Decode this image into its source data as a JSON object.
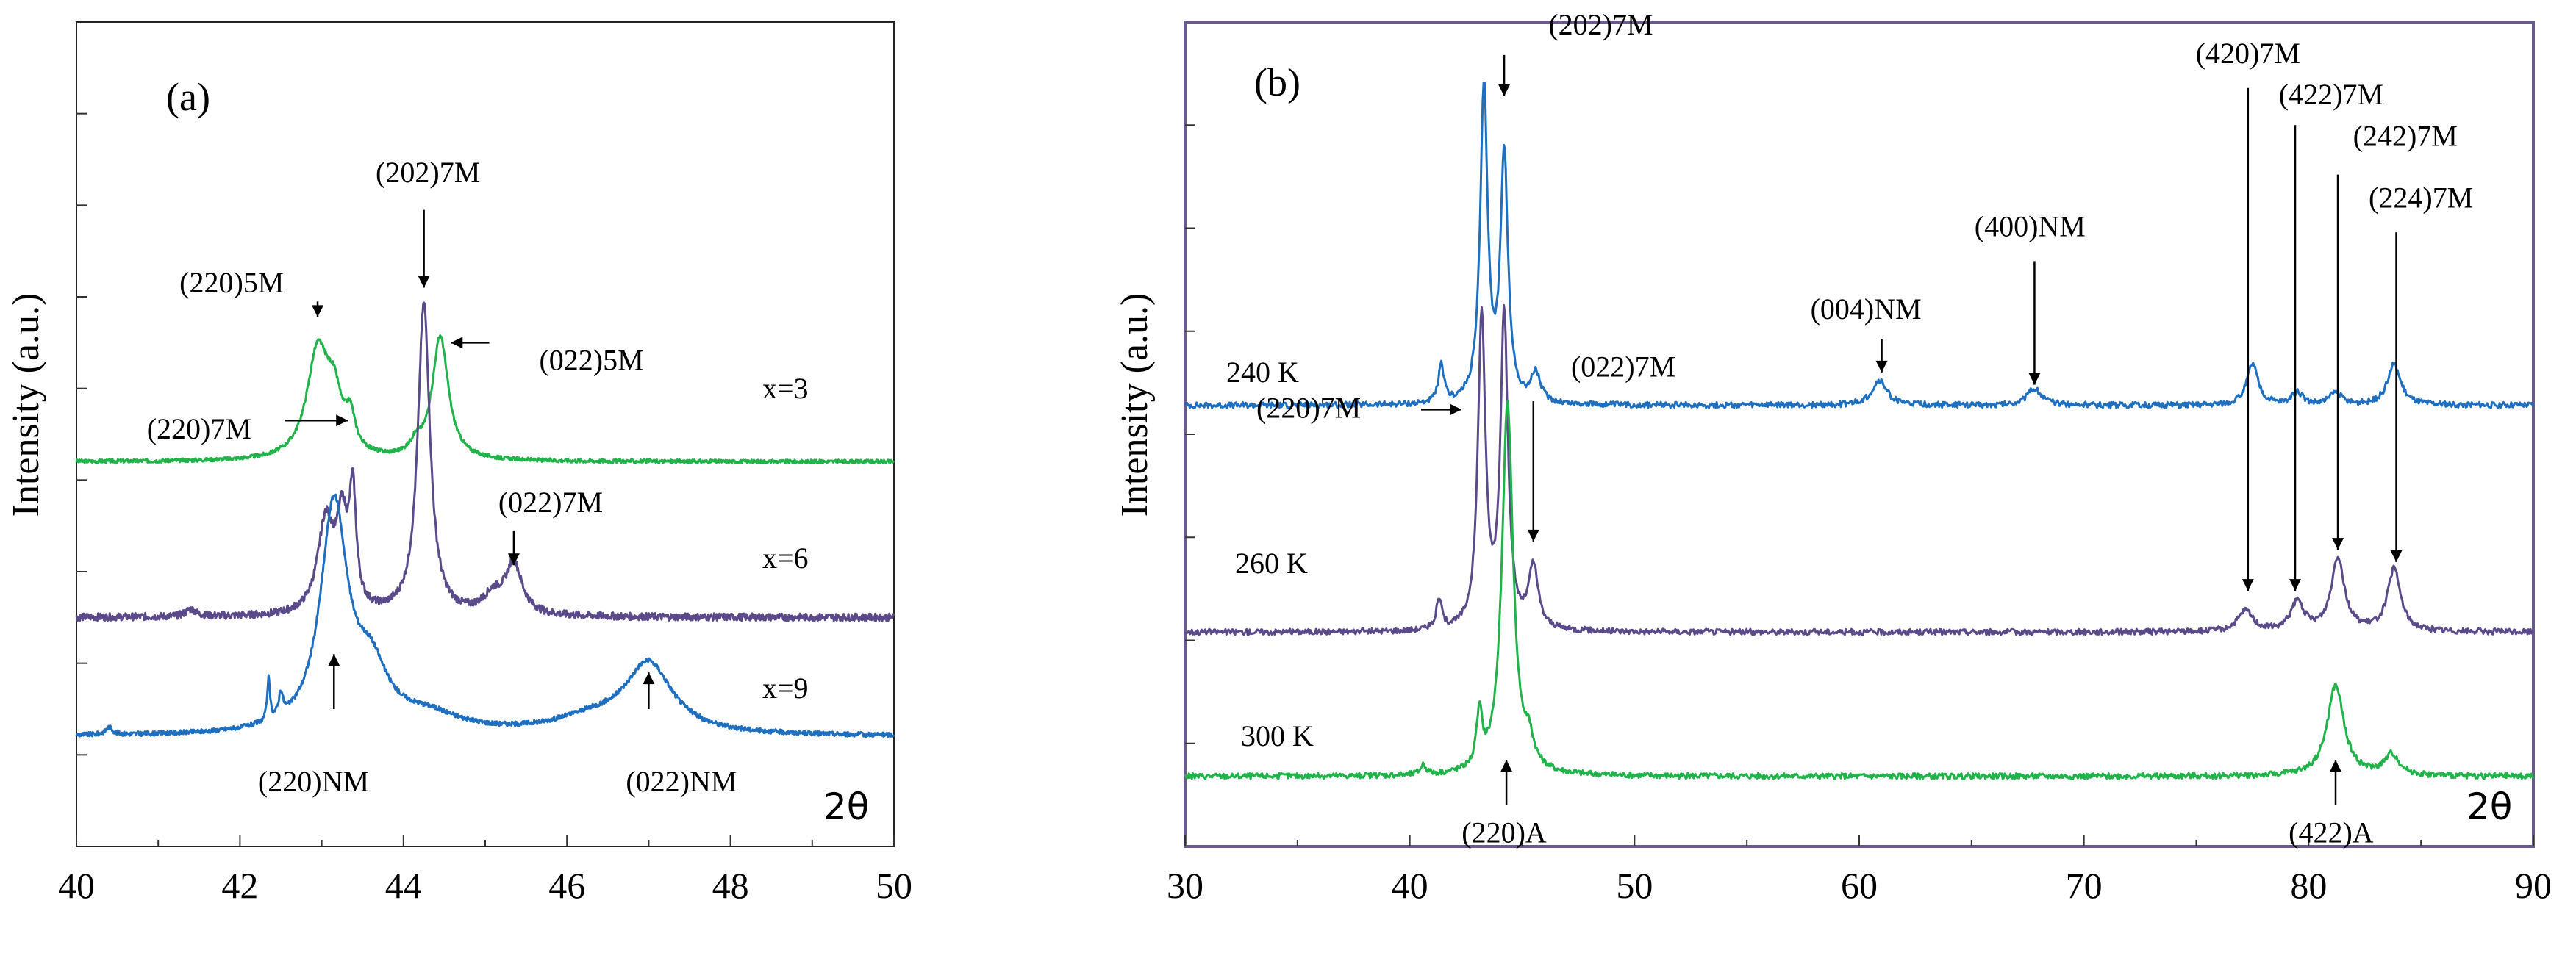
{
  "chart_data": [
    {
      "type": "line",
      "panel_label": "(a)",
      "title": "",
      "xlabel": "2θ",
      "ylabel": "Intensity (a.u.)",
      "xlim": [
        40,
        50
      ],
      "ylim": [
        0,
        9
      ],
      "xticks": [
        40,
        42,
        44,
        46,
        48,
        50
      ],
      "xtick_labels": [
        "40",
        "42",
        "44",
        "46",
        "48",
        "50"
      ],
      "grid": false,
      "series": [
        {
          "name": "x=3",
          "label": "x=3",
          "color": "#1fb34a",
          "offset": 4.2,
          "baseline": 0,
          "noise": 0.02,
          "seed": 3,
          "peaks": [
            {
              "pos": 42.95,
              "h": 1.15,
              "w": 0.16
            },
            {
              "pos": 43.15,
              "h": 0.55,
              "w": 0.12
            },
            {
              "pos": 43.35,
              "h": 0.35,
              "w": 0.07
            },
            {
              "pos": 44.45,
              "h": 1.35,
              "w": 0.12
            },
            {
              "pos": 44.15,
              "h": 0.12,
              "w": 0.08
            }
          ]
        },
        {
          "name": "x=6",
          "label": "x=6",
          "color": "#5b4a8a",
          "offset": 2.5,
          "baseline": 0,
          "noise": 0.04,
          "seed": 6,
          "peaks": [
            {
              "pos": 41.4,
              "h": 0.08,
              "w": 0.08
            },
            {
              "pos": 43.05,
              "h": 1.0,
              "w": 0.12
            },
            {
              "pos": 43.25,
              "h": 0.9,
              "w": 0.08
            },
            {
              "pos": 43.38,
              "h": 1.2,
              "w": 0.05
            },
            {
              "pos": 44.25,
              "h": 3.4,
              "w": 0.09
            },
            {
              "pos": 45.35,
              "h": 0.55,
              "w": 0.12
            },
            {
              "pos": 45.1,
              "h": 0.2,
              "w": 0.15
            }
          ]
        },
        {
          "name": "x=9",
          "label": "x=9",
          "color": "#1e6fbf",
          "offset": 1.2,
          "baseline": 0,
          "noise": 0.025,
          "seed": 9,
          "peaks": [
            {
              "pos": 40.4,
              "h": 0.08,
              "w": 0.05
            },
            {
              "pos": 42.35,
              "h": 0.45,
              "w": 0.02
            },
            {
              "pos": 42.5,
              "h": 0.25,
              "w": 0.03
            },
            {
              "pos": 43.15,
              "h": 2.45,
              "w": 0.2
            },
            {
              "pos": 43.6,
              "h": 0.6,
              "w": 0.25
            },
            {
              "pos": 44.3,
              "h": 0.18,
              "w": 0.5
            },
            {
              "pos": 47.0,
              "h": 0.75,
              "w": 0.35
            },
            {
              "pos": 46.3,
              "h": 0.15,
              "w": 0.6
            }
          ]
        }
      ],
      "annotations": [
        {
          "text": "(220)5M",
          "tx": 41.9,
          "ty": 6.05,
          "arrow": [
            [
              42.95,
              5.95
            ],
            [
              42.95,
              5.78
            ]
          ]
        },
        {
          "text": "(202)7M",
          "tx": 44.3,
          "ty": 7.25,
          "arrow": [
            [
              44.25,
              6.95
            ],
            [
              44.25,
              6.1
            ]
          ]
        },
        {
          "text": "(022)5M",
          "tx": 46.3,
          "ty": 5.2,
          "arrow": [
            [
              45.05,
              5.5
            ],
            [
              44.58,
              5.5
            ]
          ]
        },
        {
          "text": "(220)7M",
          "tx": 41.5,
          "ty": 4.45,
          "arrow": [
            [
              42.55,
              4.65
            ],
            [
              43.32,
              4.65
            ]
          ]
        },
        {
          "text": "(022)7M",
          "tx": 45.8,
          "ty": 3.65,
          "arrow": [
            [
              45.35,
              3.45
            ],
            [
              45.35,
              3.07
            ]
          ]
        },
        {
          "text": "(220)NM",
          "tx": 42.9,
          "ty": 0.6,
          "arrow": [
            [
              43.15,
              1.5
            ],
            [
              43.15,
              2.1
            ]
          ]
        },
        {
          "text": "(022)NM",
          "tx": 47.4,
          "ty": 0.6,
          "arrow": [
            [
              47.0,
              1.5
            ],
            [
              47.0,
              1.9
            ]
          ]
        }
      ]
    },
    {
      "type": "line",
      "panel_label": "(b)",
      "title": "",
      "xlabel": "2θ",
      "ylabel": "Intensity (a.u.)",
      "xlim": [
        30,
        90
      ],
      "ylim": [
        0,
        10
      ],
      "xticks": [
        30,
        40,
        50,
        60,
        70,
        80,
        90
      ],
      "xtick_labels": [
        "30",
        "40",
        "50",
        "60",
        "70",
        "80",
        "90"
      ],
      "grid": false,
      "series": [
        {
          "name": "240 K",
          "label": "240 K",
          "color": "#1e6fbf",
          "offset": 5.35,
          "baseline": 0,
          "noise": 0.035,
          "seed": 24,
          "peaks": [
            {
              "pos": 41.4,
              "h": 0.45,
              "w": 0.15
            },
            {
              "pos": 43.3,
              "h": 3.8,
              "w": 0.2
            },
            {
              "pos": 44.2,
              "h": 3.0,
              "w": 0.2
            },
            {
              "pos": 45.6,
              "h": 0.35,
              "w": 0.25
            },
            {
              "pos": 60.9,
              "h": 0.3,
              "w": 0.4
            },
            {
              "pos": 67.8,
              "h": 0.2,
              "w": 0.4
            },
            {
              "pos": 77.5,
              "h": 0.5,
              "w": 0.3
            },
            {
              "pos": 79.5,
              "h": 0.15,
              "w": 0.3
            },
            {
              "pos": 81.2,
              "h": 0.15,
              "w": 0.3
            },
            {
              "pos": 83.8,
              "h": 0.5,
              "w": 0.35
            }
          ]
        },
        {
          "name": "260 K",
          "label": "260 K",
          "color": "#5b4a8a",
          "offset": 2.6,
          "baseline": 0,
          "noise": 0.035,
          "seed": 26,
          "peaks": [
            {
              "pos": 41.3,
              "h": 0.35,
              "w": 0.15
            },
            {
              "pos": 43.2,
              "h": 3.8,
              "w": 0.2
            },
            {
              "pos": 44.2,
              "h": 3.8,
              "w": 0.2
            },
            {
              "pos": 45.5,
              "h": 0.75,
              "w": 0.25
            },
            {
              "pos": 77.2,
              "h": 0.25,
              "w": 0.4
            },
            {
              "pos": 79.5,
              "h": 0.35,
              "w": 0.35
            },
            {
              "pos": 81.3,
              "h": 0.9,
              "w": 0.35
            },
            {
              "pos": 83.8,
              "h": 0.75,
              "w": 0.35
            }
          ]
        },
        {
          "name": "300 K",
          "label": "300 K",
          "color": "#1fb34a",
          "offset": 0.85,
          "baseline": 0,
          "noise": 0.035,
          "seed": 30,
          "peaks": [
            {
              "pos": 40.6,
              "h": 0.12,
              "w": 0.15
            },
            {
              "pos": 43.1,
              "h": 0.65,
              "w": 0.15
            },
            {
              "pos": 44.35,
              "h": 4.5,
              "w": 0.3
            },
            {
              "pos": 45.3,
              "h": 0.3,
              "w": 0.25
            },
            {
              "pos": 81.2,
              "h": 1.1,
              "w": 0.45
            },
            {
              "pos": 83.7,
              "h": 0.25,
              "w": 0.4
            }
          ]
        }
      ],
      "annotations": [
        {
          "text": "(202)7M",
          "tx": 48.5,
          "ty": 9.85,
          "arrow": [
            [
              44.2,
              9.6
            ],
            [
              44.2,
              9.1
            ]
          ]
        },
        {
          "text": "(004)NM",
          "tx": 60.3,
          "ty": 6.4,
          "arrow": [
            [
              61.0,
              6.15
            ],
            [
              61.0,
              5.75
            ]
          ]
        },
        {
          "text": "(400)NM",
          "tx": 67.6,
          "ty": 7.4,
          "arrow": [
            [
              67.8,
              7.1
            ],
            [
              67.8,
              5.6
            ]
          ]
        },
        {
          "text": "(420)7M",
          "tx": 77.3,
          "ty": 9.5,
          "arrow": [
            [
              77.3,
              9.2
            ],
            [
              77.3,
              3.1
            ]
          ]
        },
        {
          "text": "(422)7M",
          "tx": 81.0,
          "ty": 9.0,
          "arrow": [
            [
              79.4,
              8.75
            ],
            [
              79.4,
              3.1
            ]
          ]
        },
        {
          "text": "(242)7M",
          "tx": 84.3,
          "ty": 8.5,
          "arrow": [
            [
              81.3,
              8.15
            ],
            [
              81.3,
              3.6
            ]
          ]
        },
        {
          "text": "(224)7M",
          "tx": 85.0,
          "ty": 7.75,
          "arrow": [
            [
              83.9,
              7.45
            ],
            [
              83.9,
              3.45
            ]
          ]
        },
        {
          "text": "(220)7M",
          "tx": 35.5,
          "ty": 5.2,
          "arrow": [
            [
              40.5,
              5.3
            ],
            [
              42.3,
              5.3
            ]
          ]
        },
        {
          "text": "(022)7M",
          "tx": 49.5,
          "ty": 5.7,
          "arrow": [
            [
              45.5,
              5.4
            ],
            [
              45.5,
              3.7
            ]
          ]
        },
        {
          "text": "(220)A",
          "tx": 44.2,
          "ty": 0.05,
          "arrow": [
            [
              44.3,
              0.5
            ],
            [
              44.3,
              1.05
            ]
          ]
        },
        {
          "text": "(422)A",
          "tx": 81.0,
          "ty": 0.05,
          "arrow": [
            [
              81.2,
              0.5
            ],
            [
              81.2,
              1.05
            ]
          ]
        }
      ]
    }
  ]
}
